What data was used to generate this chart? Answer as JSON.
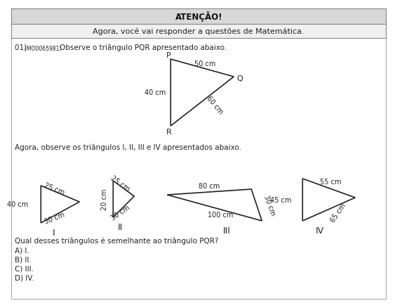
{
  "title": "ATENÇÃO!",
  "subtitle": "Agora, você vai responder a questões de Matemática.",
  "q_label_normal": "01) ",
  "q_label_small": "(MO0065981) ",
  "q_label_rest": "Observe o triângulo PQR apresentado abaixo.",
  "middle_label": "Agora, observe os triângulos I, II, III e IV apresentados abaixo.",
  "question_text": "Qual desses triângulos é semelhante ao triângulo PQR?",
  "answers": [
    "A) I.",
    "B) II.",
    "C) III.",
    "D) IV."
  ],
  "bg_color": "#ffffff",
  "header_bg": "#d8d8d8",
  "sub_bg": "#f0f0f0",
  "border_color": "#888888",
  "text_color": "#222222",
  "tri_color": "#222222",
  "PQR": {
    "P": [
      230,
      75
    ],
    "Q": [
      320,
      100
    ],
    "R": [
      230,
      170
    ],
    "PQ": "50 cm",
    "PR": "40 cm",
    "QR": "60 cm"
  },
  "tri_I": {
    "A": [
      45,
      255
    ],
    "B": [
      100,
      278
    ],
    "C": [
      45,
      308
    ],
    "AB": "25 cm",
    "AC": "40 cm",
    "BC": "30 cm"
  },
  "tri_II": {
    "A": [
      148,
      248
    ],
    "B": [
      178,
      270
    ],
    "C": [
      148,
      300
    ],
    "AB": "25 cm",
    "AC": "20 cm",
    "BC": "30 cm"
  },
  "tri_III": {
    "A": [
      225,
      268
    ],
    "B": [
      345,
      260
    ],
    "C": [
      360,
      305
    ],
    "AB": "80 cm",
    "AC": "100 cm",
    "BC": "30 cm"
  },
  "tri_IV": {
    "A": [
      418,
      245
    ],
    "B": [
      493,
      272
    ],
    "C": [
      418,
      305
    ],
    "AB": "55 cm",
    "AC": "45 cm",
    "BC": "65 cm"
  }
}
